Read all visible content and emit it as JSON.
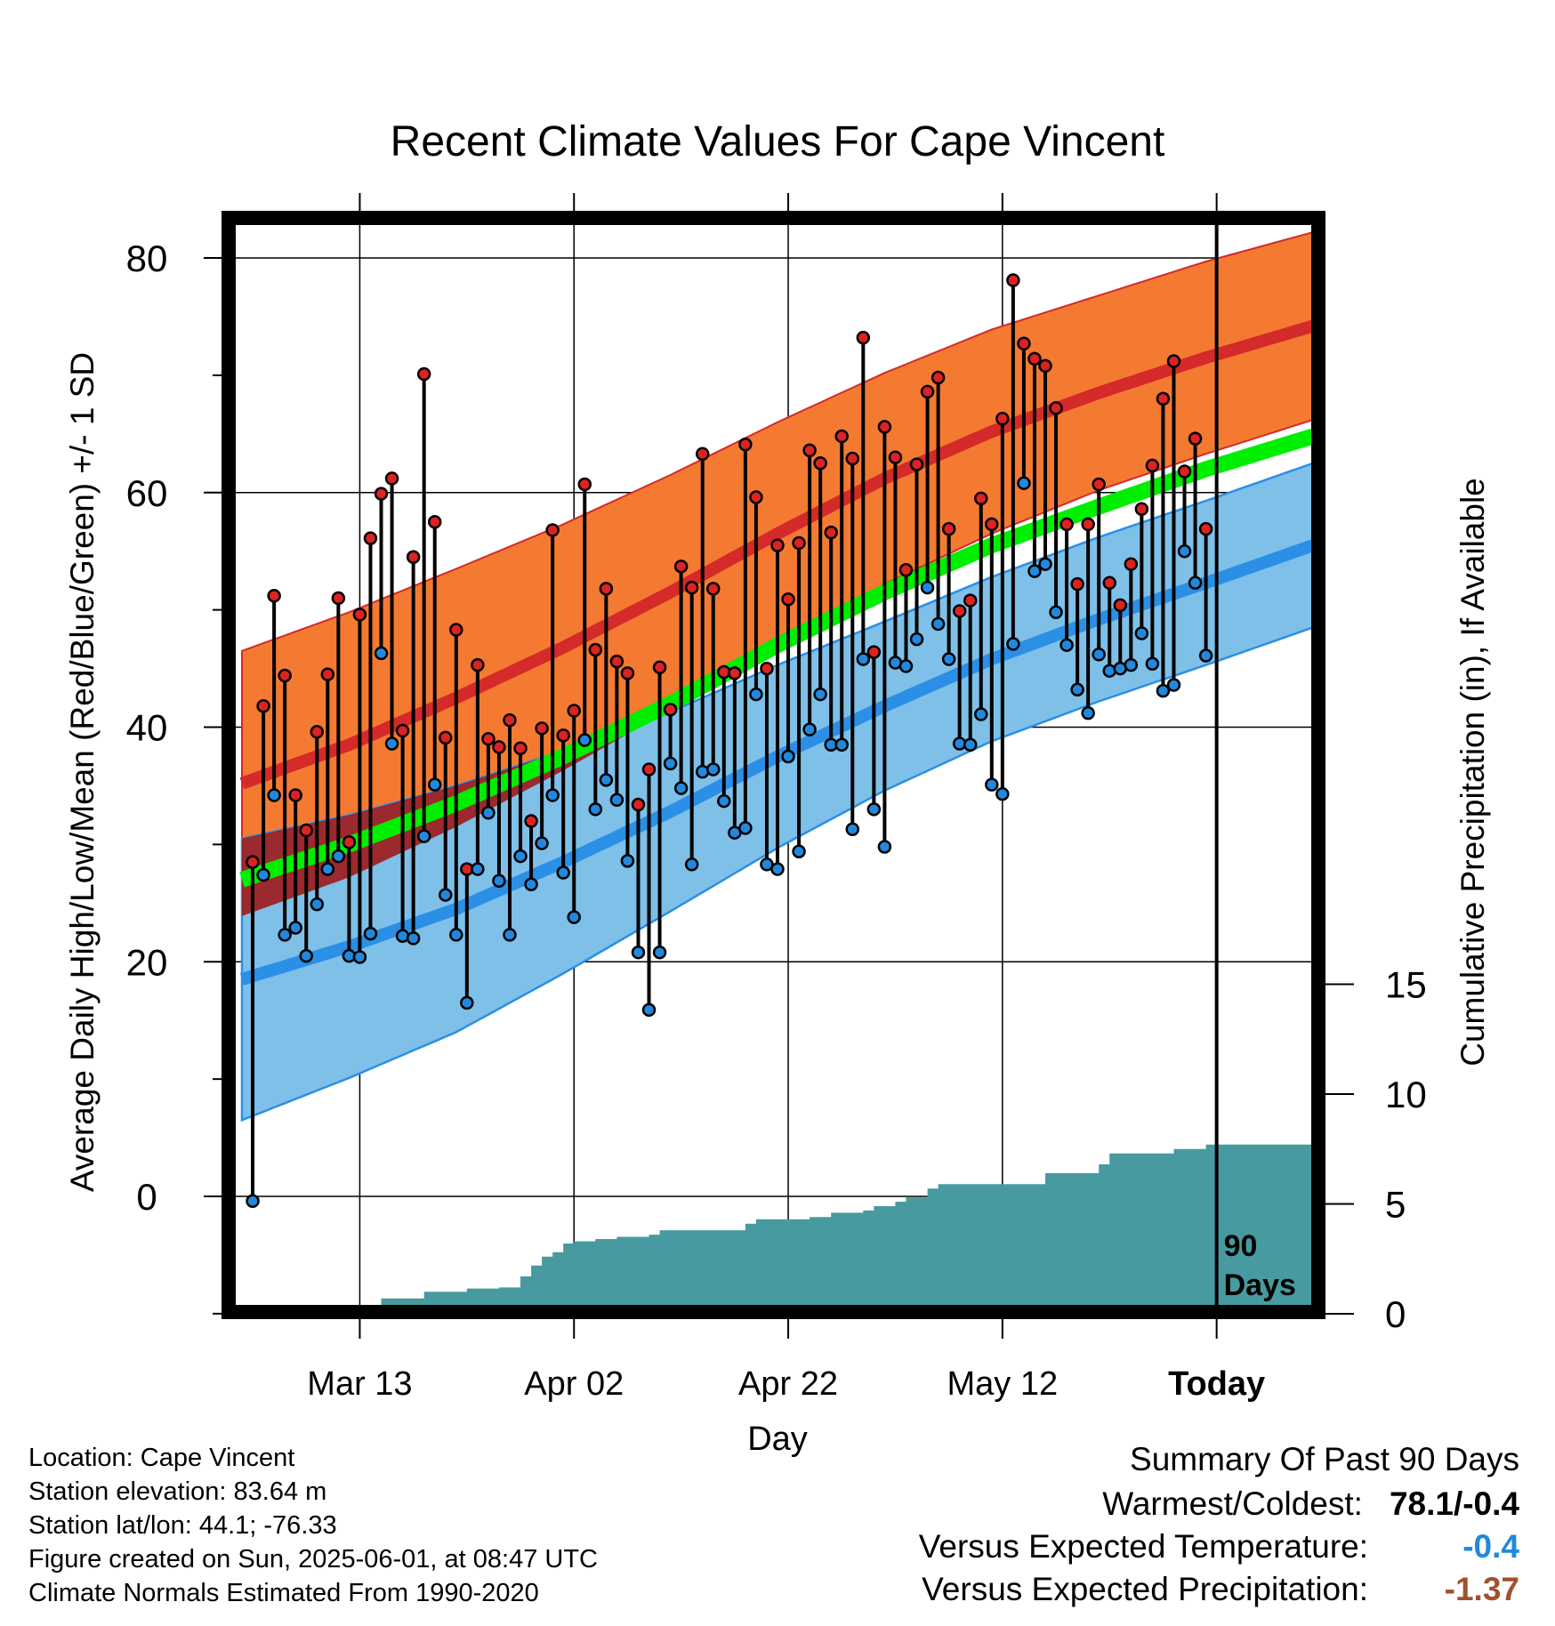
{
  "chart_data": {
    "type": "line",
    "title": "Recent Climate Values For Cape Vincent",
    "xlabel": "Day",
    "ylabel": "Average Daily High/Low/Mean (Red/Blue/Green) +/- 1 SD",
    "y2label": "Cumulative Precipitation (in), If Available",
    "xticks": [
      {
        "label": "Mar 13",
        "day": 11
      },
      {
        "label": "Apr 02",
        "day": 31
      },
      {
        "label": "Apr 22",
        "day": 51
      },
      {
        "label": "May 12",
        "day": 71
      },
      {
        "label": "Today",
        "day": 91
      }
    ],
    "xlim": [
      0,
      100
    ],
    "ylim": [
      -10,
      85
    ],
    "yticks": [
      0,
      20,
      40,
      60,
      80
    ],
    "y2lim": [
      0,
      18
    ],
    "y2ticks": [
      0,
      5,
      10,
      15
    ],
    "today_marker": {
      "day": 91,
      "label_line1": "90",
      "label_line2": "Days"
    },
    "grid": true,
    "normals": {
      "days": [
        0,
        10,
        20,
        30,
        40,
        50,
        60,
        70,
        80,
        90,
        100
      ],
      "high_mean": [
        35.2,
        38.5,
        42.5,
        46.8,
        51.5,
        56.5,
        61.2,
        65.2,
        68.5,
        71.5,
        74.2
      ],
      "high_sd": [
        11.3,
        11.3,
        11.0,
        10.5,
        10.0,
        9.5,
        9.0,
        8.7,
        8.3,
        8.2,
        8.0
      ],
      "low_mean": [
        18.5,
        21.3,
        24.5,
        28.5,
        32.8,
        37.5,
        41.8,
        45.8,
        49.2,
        52.3,
        55.5
      ],
      "low_sd": [
        12.0,
        11.2,
        10.5,
        9.5,
        8.5,
        7.8,
        7.2,
        7.0,
        7.0,
        7.0,
        7.0
      ],
      "avg_mean": [
        27.0,
        30.0,
        33.5,
        37.5,
        42.0,
        47.0,
        51.5,
        55.5,
        58.8,
        62.0,
        64.8
      ]
    },
    "series": [
      {
        "name": "High",
        "color": "#dd2222",
        "values": [
          28.5,
          41.8,
          51.2,
          44.4,
          34.2,
          31.2,
          39.6,
          44.5,
          51.0,
          30.2,
          49.6,
          56.1,
          59.9,
          61.2,
          39.7,
          54.5,
          70.1,
          57.5,
          39.1,
          48.3,
          27.9,
          45.3,
          39.0,
          38.3,
          40.6,
          38.2,
          32.0,
          39.9,
          56.8,
          39.3,
          41.4,
          60.7,
          46.6,
          51.8,
          45.6,
          44.6,
          33.4,
          36.4,
          45.1,
          41.5,
          53.7,
          51.9,
          63.3,
          51.8,
          44.7,
          44.6,
          64.1,
          59.6,
          45.0,
          55.5,
          50.9,
          55.7,
          63.6,
          62.5,
          56.6,
          64.8,
          62.9,
          73.2,
          46.4,
          65.6,
          63.0,
          53.4,
          62.4,
          68.6,
          69.8,
          56.9,
          49.9,
          50.8,
          59.5,
          57.3,
          66.3,
          78.1,
          72.7,
          71.4,
          70.8,
          67.2,
          57.3,
          52.2,
          57.3,
          60.7,
          52.3,
          50.4,
          53.9,
          58.6,
          62.3,
          68.0,
          71.2,
          61.8,
          64.6,
          56.9
        ]
      },
      {
        "name": "Low",
        "color": "#2288dd",
        "values": [
          -0.4,
          27.4,
          34.2,
          22.3,
          22.9,
          20.5,
          24.9,
          27.9,
          29.0,
          20.5,
          20.4,
          22.4,
          46.3,
          38.6,
          22.2,
          22.0,
          30.7,
          35.1,
          25.7,
          22.3,
          16.5,
          27.9,
          32.7,
          26.9,
          22.3,
          29.0,
          26.6,
          30.1,
          34.2,
          27.6,
          23.8,
          38.9,
          33.0,
          35.5,
          33.8,
          28.6,
          20.8,
          15.9,
          20.8,
          36.9,
          34.8,
          28.3,
          36.2,
          36.4,
          33.7,
          31.0,
          31.4,
          42.8,
          28.3,
          27.9,
          37.5,
          29.4,
          39.8,
          42.8,
          38.5,
          38.5,
          31.3,
          45.8,
          33.0,
          29.8,
          45.5,
          45.2,
          47.5,
          51.9,
          48.8,
          45.8,
          38.6,
          38.5,
          41.1,
          35.1,
          34.3,
          47.1,
          60.8,
          53.3,
          53.9,
          49.8,
          47.0,
          43.2,
          41.2,
          46.2,
          44.8,
          45.0,
          45.3,
          48.0,
          45.4,
          43.1,
          43.6,
          55.0,
          52.3,
          46.1
        ]
      },
      {
        "name": "Precipitation",
        "color": "#479aa0",
        "days": [
          0,
          12,
          13,
          15,
          17,
          20,
          21,
          24,
          26,
          27,
          28,
          29,
          30,
          31,
          33,
          35,
          38,
          39,
          41,
          45,
          47,
          48,
          50,
          53,
          55,
          57,
          58,
          59,
          61,
          62,
          64,
          65,
          67,
          72,
          74,
          75,
          77,
          78,
          80,
          81,
          83,
          86,
          87,
          89,
          90,
          91,
          100
        ],
        "values": [
          0,
          0,
          0.7,
          0.7,
          1.0,
          1.0,
          1.15,
          1.2,
          1.7,
          2.2,
          2.6,
          2.8,
          3.2,
          3.3,
          3.4,
          3.5,
          3.6,
          3.8,
          3.8,
          3.8,
          4.1,
          4.3,
          4.3,
          4.4,
          4.6,
          4.6,
          4.7,
          4.9,
          5.1,
          5.3,
          5.7,
          5.9,
          5.9,
          5.9,
          5.9,
          6.4,
          6.4,
          6.4,
          6.8,
          7.3,
          7.3,
          7.3,
          7.5,
          7.5,
          7.7,
          7.7,
          7.7
        ]
      }
    ]
  },
  "info": {
    "location": "Location: Cape Vincent",
    "elevation": "Station elevation: 83.64 m",
    "latlon": "Station lat/lon: 44.1; -76.33",
    "created": "Figure created on Sun, 2025-06-01, at 08:47 UTC",
    "normals_period": "Climate Normals Estimated From 1990-2020"
  },
  "summary": {
    "title": "Summary Of Past 90 Days",
    "warmest_coldest_label": "Warmest/Coldest:",
    "warmest_coldest_value": "78.1/-0.4",
    "temp_label": "Versus Expected Temperature:",
    "temp_value": "-0.4",
    "temp_color": "#2288dd",
    "precip_label": "Versus Expected Precipitation:",
    "precip_value": "-1.37",
    "precip_color": "#a0522d"
  },
  "colors": {
    "high_band": "#f47a32",
    "high_line": "#d42a2a",
    "low_band": "#7ec0e8",
    "low_line": "#2b8fe6",
    "mean_line": "#00ee00",
    "overlap": "#a01818",
    "precip": "#479aa0"
  }
}
